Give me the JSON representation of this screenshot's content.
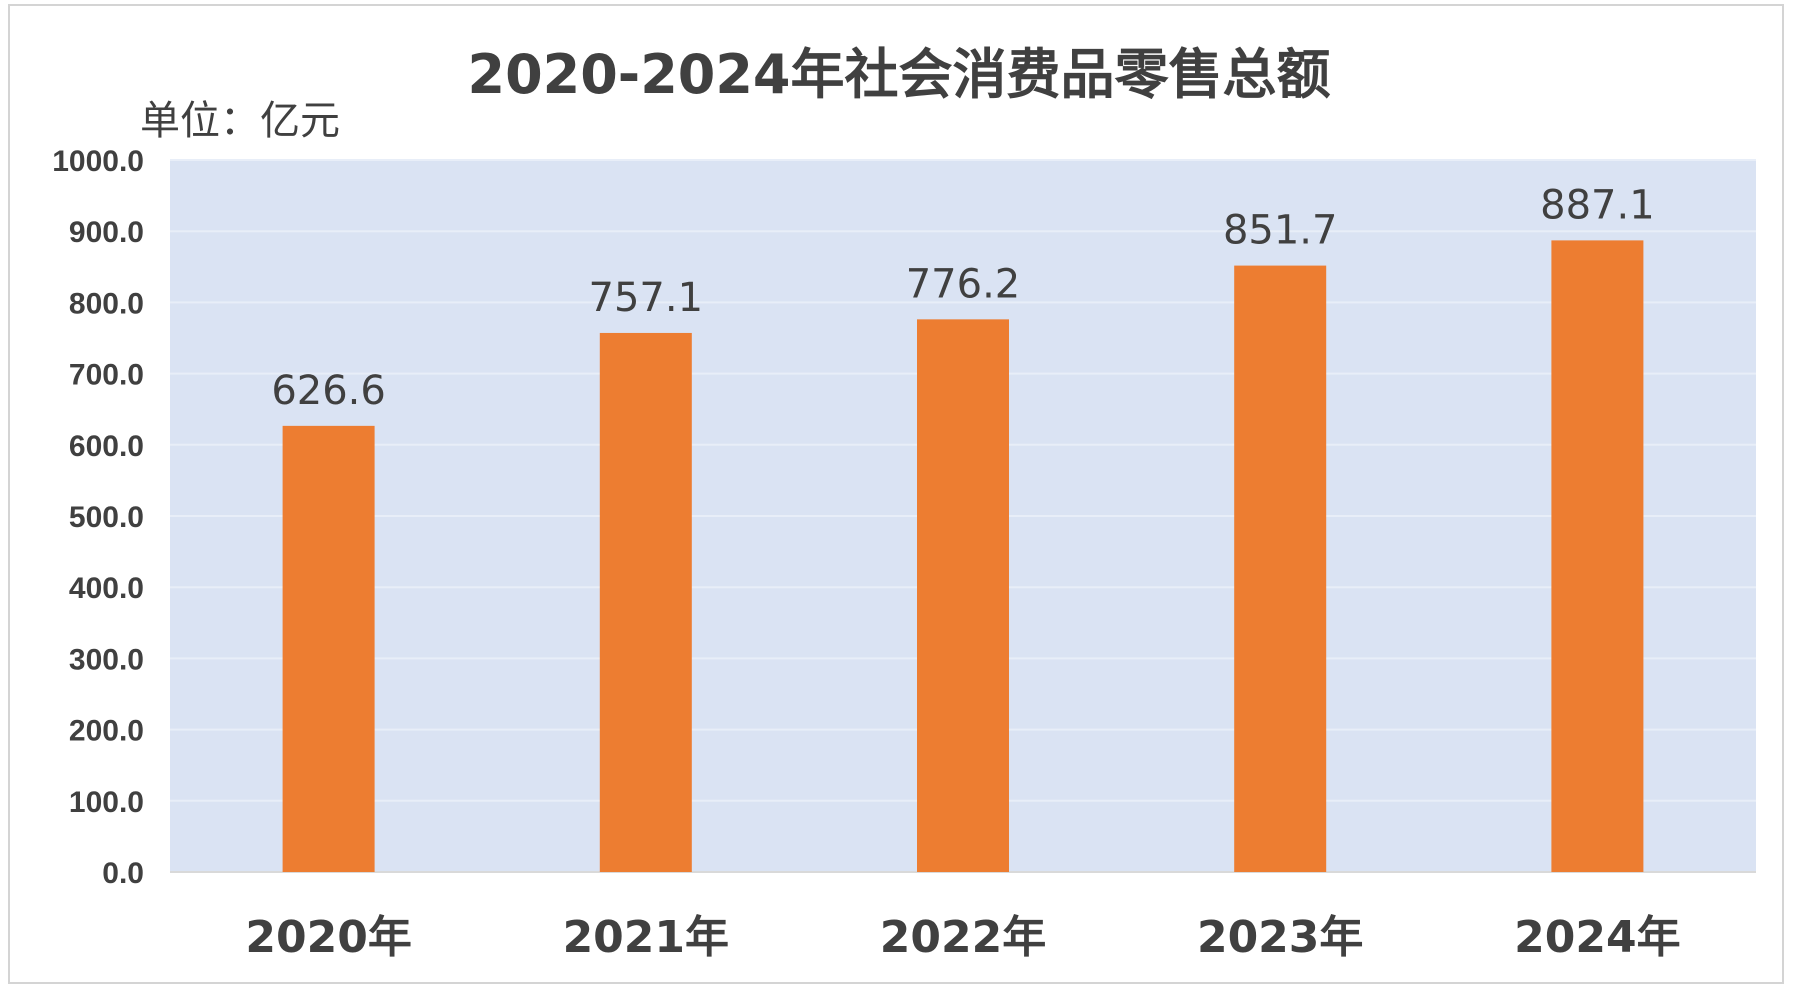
{
  "chart_data": {
    "type": "bar",
    "title": "2020-2024年社会消费品零售总额",
    "unit_label": "单位：亿元",
    "categories": [
      "2020年",
      "2021年",
      "2022年",
      "2023年",
      "2024年"
    ],
    "values": [
      626.6,
      757.1,
      776.2,
      851.7,
      887.1
    ],
    "data_labels": [
      "626.6",
      "757.1",
      "776.2",
      "851.7",
      "887.1"
    ],
    "ylim": [
      0,
      1000
    ],
    "yticks": [
      "0.0",
      "100.0",
      "200.0",
      "300.0",
      "400.0",
      "500.0",
      "600.0",
      "700.0",
      "800.0",
      "900.0",
      "1000.0"
    ],
    "grid": true,
    "legend": "none",
    "colors": {
      "bar": "#ed7d31",
      "plot_background": "#dae3f3",
      "grid": "#e8eef8",
      "text": "#404040"
    }
  }
}
